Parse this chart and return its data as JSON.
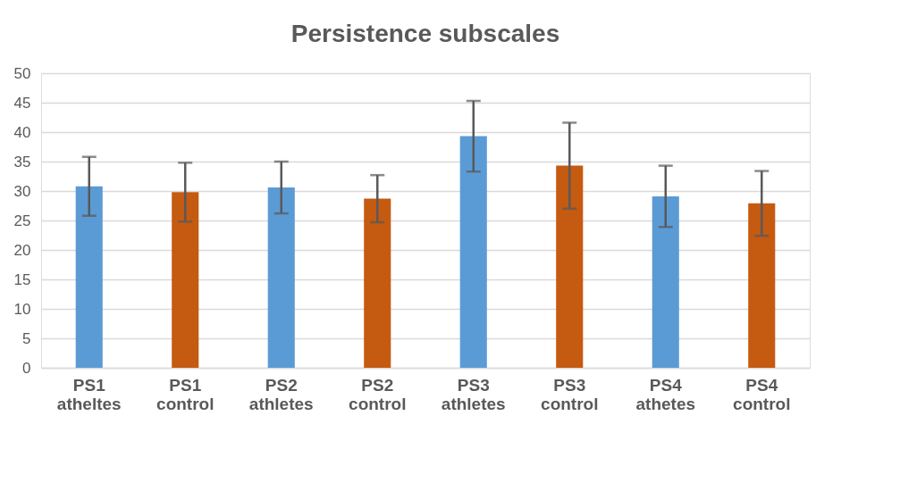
{
  "chart_data": {
    "type": "bar",
    "title": "Persistence subscales",
    "categories": [
      "PS1 atheltes",
      "PS1 control",
      "PS2 athletes",
      "PS2 control",
      "PS3 athletes",
      "PS3 control",
      "PS4 athetes",
      "PS4 control"
    ],
    "values": [
      30.8,
      29.8,
      30.6,
      28.7,
      39.3,
      34.3,
      29.1,
      27.9
    ],
    "errors": [
      5.0,
      5.0,
      4.4,
      4.0,
      6.0,
      7.3,
      5.2,
      5.5
    ],
    "colors": [
      "#5b9bd5",
      "#c55a11",
      "#5b9bd5",
      "#c55a11",
      "#5b9bd5",
      "#c55a11",
      "#5b9bd5",
      "#c55a11"
    ],
    "ylim": [
      0,
      50
    ],
    "yticks": [
      0,
      5,
      10,
      15,
      20,
      25,
      30,
      35,
      40,
      45,
      50
    ],
    "grid": "y"
  }
}
